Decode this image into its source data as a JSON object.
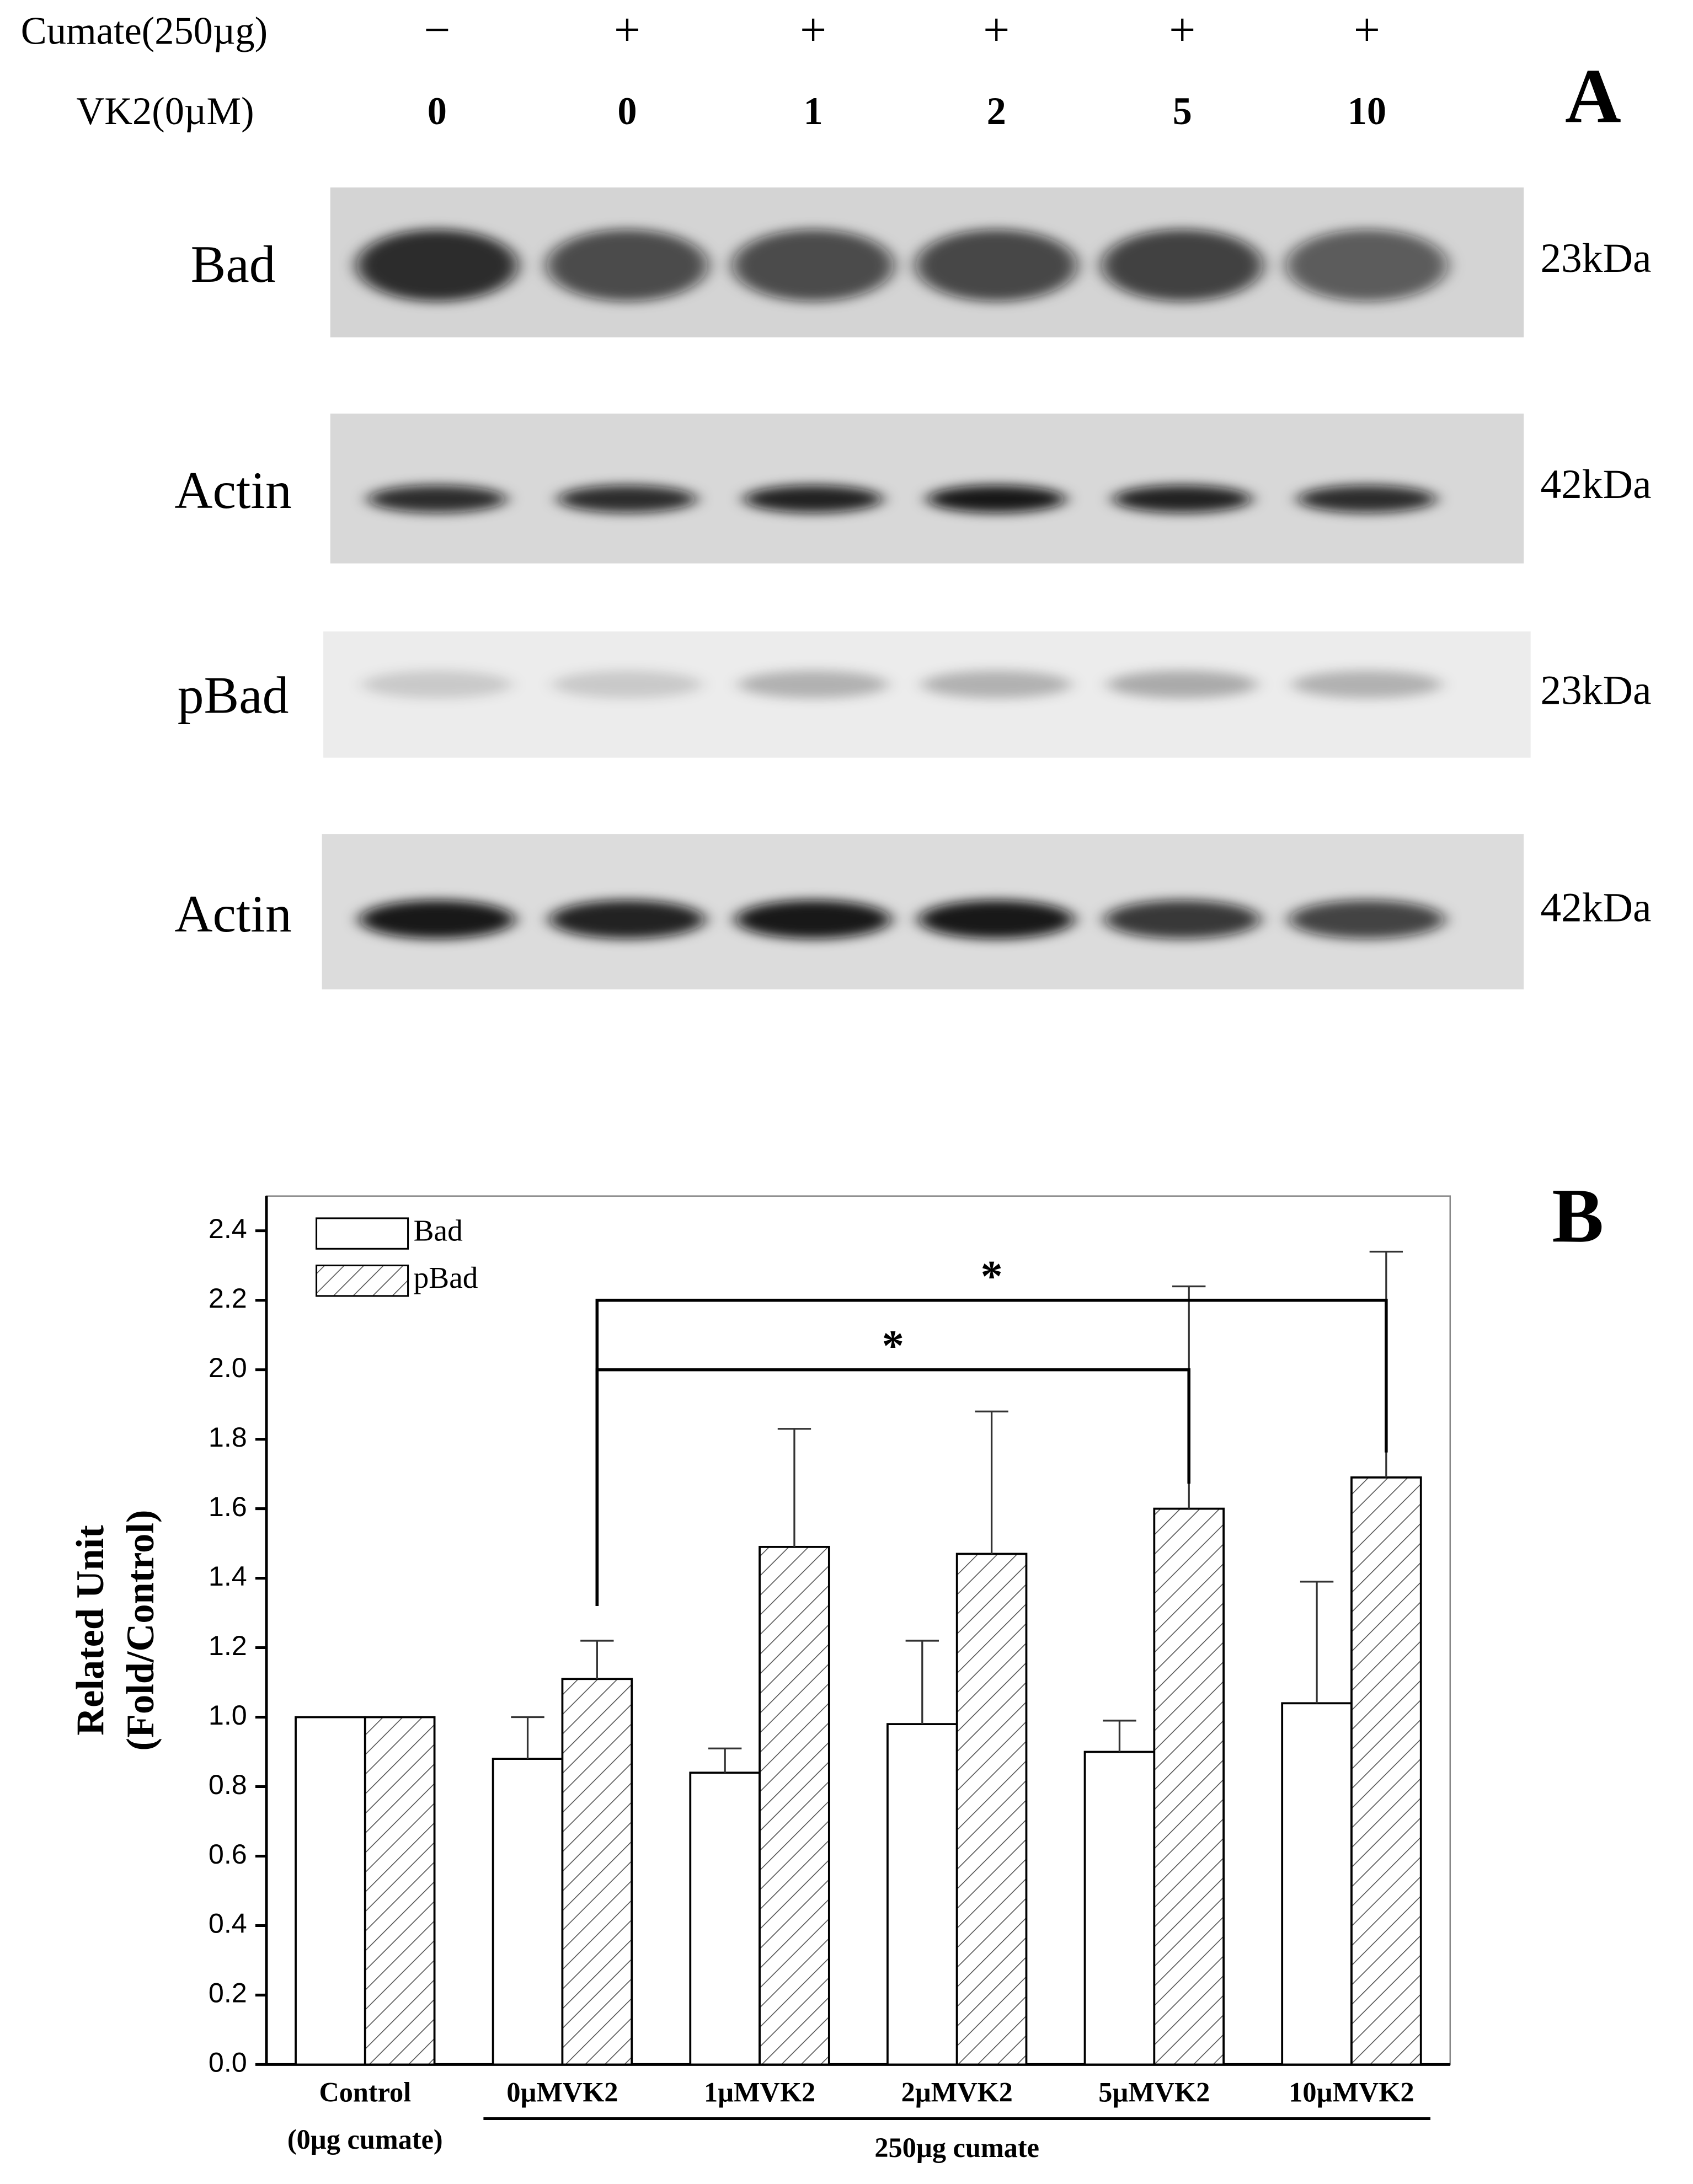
{
  "panel_a": {
    "label": "A",
    "rows": [
      {
        "name": "Cumate(250µg)",
        "values": [
          "−",
          "+",
          "+",
          "+",
          "+",
          "+"
        ]
      },
      {
        "name": "VK2(0µM)",
        "values": [
          0,
          0,
          1,
          2,
          5,
          10
        ]
      }
    ],
    "blots": [
      {
        "name": "Bad",
        "size": "23kDa"
      },
      {
        "name": "Actin",
        "size": "42kDa"
      },
      {
        "name": "pBad",
        "size": "23kDa"
      },
      {
        "name": "Actin",
        "size": "42kDa"
      }
    ]
  },
  "chart_data": {
    "type": "bar",
    "panel_label": "B",
    "ylabel": [
      "Related Unit",
      "(Fold/Control)"
    ],
    "categories": [
      "Control",
      "0µMVK2",
      "1µMVK2",
      "2µMVK2",
      "5µMVK2",
      "10µMVK2"
    ],
    "category_note": "(0µg cumate)",
    "group_label": "250µg cumate",
    "series": [
      {
        "name": "Bad",
        "pattern": "none",
        "values": [
          1.0,
          0.88,
          0.84,
          0.98,
          0.9,
          1.04
        ],
        "errors": [
          0,
          0.12,
          0.07,
          0.24,
          0.09,
          0.35
        ]
      },
      {
        "name": "pBad",
        "pattern": "hatch",
        "values": [
          1.0,
          1.11,
          1.49,
          1.47,
          1.6,
          1.69
        ],
        "errors": [
          0,
          0.11,
          0.34,
          0.41,
          0.64,
          0.65
        ]
      }
    ],
    "ylim": [
      0,
      2.5
    ],
    "yticks": [
      {
        "value": 0,
        "label": "0.0"
      },
      0.2,
      0.4,
      0.6,
      0.8,
      {
        "value": 1,
        "label": "1.0"
      },
      1.2,
      1.4,
      1.6,
      1.8,
      {
        "value": 2,
        "label": "2.0"
      },
      2.2,
      2.4
    ],
    "significance": [
      {
        "from": 1,
        "to": 4,
        "label": "*"
      },
      {
        "from": 1,
        "to": 5,
        "label": "*"
      }
    ],
    "legend": "upper left"
  }
}
